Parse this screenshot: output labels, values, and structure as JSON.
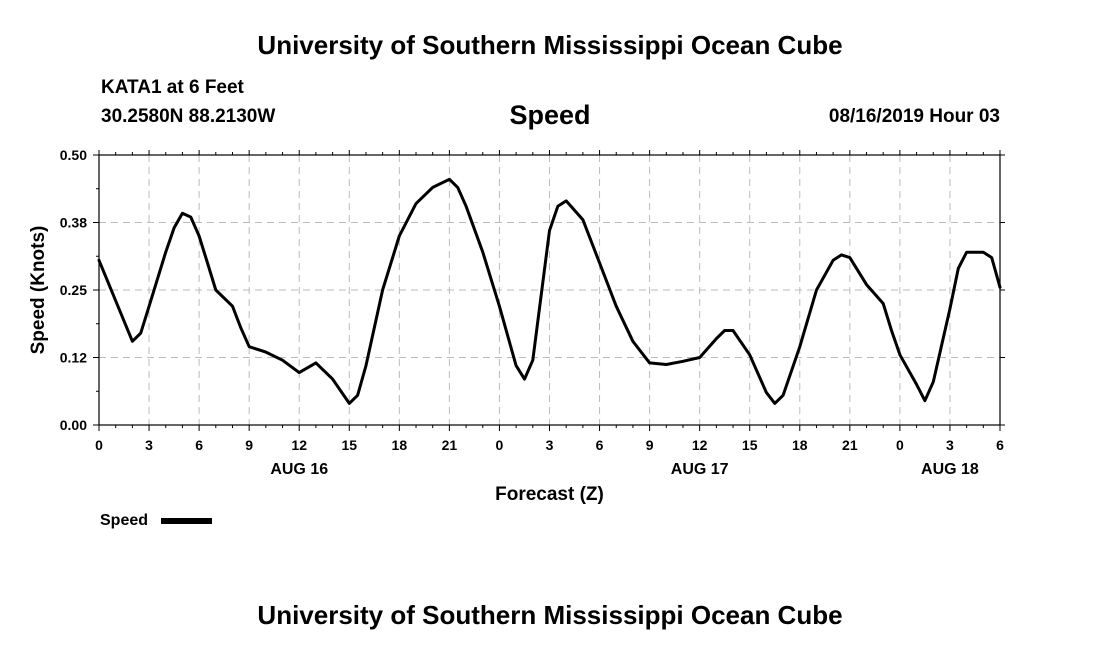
{
  "header": {
    "title": "University of Southern Mississippi Ocean Cube",
    "station": "KATA1 at 6 Feet",
    "coords": "30.2580N 88.2130W",
    "datetime": "08/16/2019 Hour 03"
  },
  "footer": {
    "title": "University of Southern Mississippi Ocean Cube"
  },
  "chart_data": {
    "type": "line",
    "title": "Speed",
    "xlabel": "Forecast (Z)",
    "ylabel": "Speed (Knots)",
    "xlim": [
      0,
      54
    ],
    "ylim": [
      0,
      0.5
    ],
    "grid": true,
    "legend": "bottom-left",
    "x_ticks": [
      "0",
      "3",
      "6",
      "9",
      "12",
      "15",
      "18",
      "21",
      "0",
      "3",
      "6",
      "9",
      "12",
      "15",
      "18",
      "21",
      "0",
      "3",
      "6"
    ],
    "y_ticks": [
      "0.00",
      "0.12",
      "0.25",
      "0.38",
      "0.50"
    ],
    "date_labels": [
      {
        "label": "AUG 16",
        "hour_offset": 12
      },
      {
        "label": "AUG 17",
        "hour_offset": 36
      },
      {
        "label": "AUG 18",
        "hour_offset": 51
      }
    ],
    "series": [
      {
        "name": "Speed",
        "color": "#000000",
        "x": [
          0,
          1,
          2,
          2.5,
          3,
          4,
          4.5,
          5,
          5.5,
          6,
          6.5,
          7,
          8,
          8.5,
          9,
          10,
          11,
          12,
          13,
          14,
          15,
          15.5,
          16,
          17,
          18,
          19,
          20,
          21,
          21.5,
          22,
          23,
          24,
          25,
          25.5,
          26,
          27,
          27.5,
          28,
          29,
          30,
          31,
          32,
          33,
          34,
          35,
          36,
          37,
          37.5,
          38,
          39,
          40,
          40.5,
          41,
          42,
          43,
          44,
          44.5,
          45,
          46,
          47,
          47.5,
          48,
          49,
          49.5,
          50,
          51,
          51.5,
          52,
          53,
          53.5,
          54
        ],
        "values": [
          0.305,
          0.23,
          0.155,
          0.17,
          0.22,
          0.32,
          0.365,
          0.392,
          0.385,
          0.35,
          0.3,
          0.25,
          0.22,
          0.18,
          0.145,
          0.135,
          0.12,
          0.097,
          0.115,
          0.085,
          0.04,
          0.055,
          0.11,
          0.25,
          0.35,
          0.41,
          0.44,
          0.455,
          0.44,
          0.405,
          0.32,
          0.22,
          0.11,
          0.085,
          0.12,
          0.36,
          0.405,
          0.415,
          0.38,
          0.3,
          0.22,
          0.155,
          0.115,
          0.112,
          0.118,
          0.125,
          0.16,
          0.175,
          0.175,
          0.13,
          0.06,
          0.04,
          0.055,
          0.145,
          0.25,
          0.305,
          0.315,
          0.31,
          0.26,
          0.225,
          0.175,
          0.13,
          0.075,
          0.045,
          0.08,
          0.215,
          0.29,
          0.32,
          0.32,
          0.31,
          0.255
        ]
      }
    ]
  }
}
